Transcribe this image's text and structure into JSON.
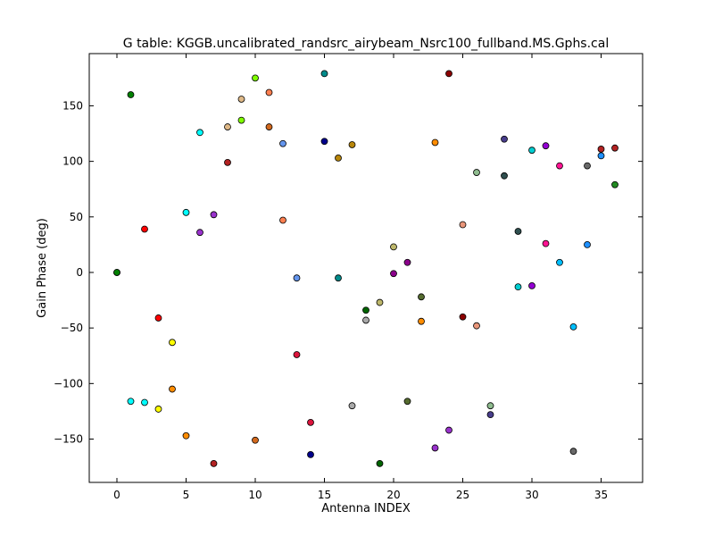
{
  "chart_data": {
    "type": "scatter",
    "title": "G table: KGGB.uncalibrated_randsrc_airybeam_Nsrc100_fullband.MS.Gphs.cal",
    "xlabel": "Antenna INDEX",
    "ylabel": "Gain Phase (deg)",
    "xlim": [
      -2,
      38
    ],
    "ylim": [
      -189,
      197
    ],
    "xticks": [
      0,
      5,
      10,
      15,
      20,
      25,
      30,
      35
    ],
    "yticks": [
      -150,
      -100,
      -50,
      0,
      50,
      100,
      150
    ],
    "grid": false,
    "points": [
      {
        "x": 0,
        "y": 0,
        "color": "#008000"
      },
      {
        "x": 0,
        "y": 0,
        "color": "#008000"
      },
      {
        "x": 1,
        "y": 160,
        "color": "#008000"
      },
      {
        "x": 1,
        "y": -116,
        "color": "#00ffff"
      },
      {
        "x": 2,
        "y": 39,
        "color": "#ff0000"
      },
      {
        "x": 2,
        "y": -117,
        "color": "#00ffff"
      },
      {
        "x": 3,
        "y": -41,
        "color": "#ff0000"
      },
      {
        "x": 3,
        "y": -123,
        "color": "#ffff00"
      },
      {
        "x": 4,
        "y": -63,
        "color": "#ffff00"
      },
      {
        "x": 4,
        "y": -105,
        "color": "#ff8c00"
      },
      {
        "x": 5,
        "y": 54,
        "color": "#00ffff"
      },
      {
        "x": 5,
        "y": -147,
        "color": "#ff8c00"
      },
      {
        "x": 6,
        "y": 126,
        "color": "#00ffff"
      },
      {
        "x": 6,
        "y": 36,
        "color": "#9932cc"
      },
      {
        "x": 7,
        "y": 52,
        "color": "#9932cc"
      },
      {
        "x": 7,
        "y": -172,
        "color": "#b22222"
      },
      {
        "x": 8,
        "y": 131,
        "color": "#deb887"
      },
      {
        "x": 8,
        "y": 99,
        "color": "#b22222"
      },
      {
        "x": 9,
        "y": 156,
        "color": "#deb887"
      },
      {
        "x": 9,
        "y": 137,
        "color": "#7fff00"
      },
      {
        "x": 10,
        "y": 175,
        "color": "#7fff00"
      },
      {
        "x": 10,
        "y": -151,
        "color": "#d2691e"
      },
      {
        "x": 11,
        "y": 162,
        "color": "#ff7f50"
      },
      {
        "x": 11,
        "y": 131,
        "color": "#d2691e"
      },
      {
        "x": 12,
        "y": 116,
        "color": "#6495ed"
      },
      {
        "x": 12,
        "y": 47,
        "color": "#ff7f50"
      },
      {
        "x": 13,
        "y": -5,
        "color": "#6495ed"
      },
      {
        "x": 13,
        "y": -74,
        "color": "#dc143c"
      },
      {
        "x": 14,
        "y": -135,
        "color": "#dc143c"
      },
      {
        "x": 14,
        "y": -164,
        "color": "#00008b"
      },
      {
        "x": 15,
        "y": 179,
        "color": "#008b8b"
      },
      {
        "x": 15,
        "y": 118,
        "color": "#00008b"
      },
      {
        "x": 16,
        "y": 103,
        "color": "#b8860b"
      },
      {
        "x": 16,
        "y": -5,
        "color": "#008b8b"
      },
      {
        "x": 17,
        "y": 115,
        "color": "#b8860b"
      },
      {
        "x": 17,
        "y": -120,
        "color": "#a9a9a9"
      },
      {
        "x": 18,
        "y": -34,
        "color": "#006400"
      },
      {
        "x": 18,
        "y": -43,
        "color": "#a9a9a9"
      },
      {
        "x": 19,
        "y": -27,
        "color": "#bdb76b"
      },
      {
        "x": 19,
        "y": -172,
        "color": "#006400"
      },
      {
        "x": 20,
        "y": 23,
        "color": "#bdb76b"
      },
      {
        "x": 20,
        "y": -1,
        "color": "#8b008b"
      },
      {
        "x": 21,
        "y": 9,
        "color": "#8b008b"
      },
      {
        "x": 21,
        "y": -116,
        "color": "#556b2f"
      },
      {
        "x": 22,
        "y": -22,
        "color": "#556b2f"
      },
      {
        "x": 22,
        "y": -44,
        "color": "#ff8c00"
      },
      {
        "x": 23,
        "y": 117,
        "color": "#ff8c00"
      },
      {
        "x": 23,
        "y": -158,
        "color": "#9932cc"
      },
      {
        "x": 24,
        "y": 179,
        "color": "#8b0000"
      },
      {
        "x": 24,
        "y": -142,
        "color": "#9932cc"
      },
      {
        "x": 25,
        "y": 43,
        "color": "#e9967a"
      },
      {
        "x": 25,
        "y": -40,
        "color": "#8b0000"
      },
      {
        "x": 26,
        "y": 90,
        "color": "#8fbc8f"
      },
      {
        "x": 26,
        "y": -48,
        "color": "#e9967a"
      },
      {
        "x": 27,
        "y": -120,
        "color": "#8fbc8f"
      },
      {
        "x": 27,
        "y": -128,
        "color": "#483d8b"
      },
      {
        "x": 28,
        "y": 120,
        "color": "#483d8b"
      },
      {
        "x": 28,
        "y": 87,
        "color": "#2f4f4f"
      },
      {
        "x": 29,
        "y": 37,
        "color": "#2f4f4f"
      },
      {
        "x": 29,
        "y": -13,
        "color": "#00ced1"
      },
      {
        "x": 30,
        "y": 110,
        "color": "#00ced1"
      },
      {
        "x": 30,
        "y": -12,
        "color": "#9400d3"
      },
      {
        "x": 31,
        "y": 114,
        "color": "#9400d3"
      },
      {
        "x": 31,
        "y": 26,
        "color": "#ff1493"
      },
      {
        "x": 32,
        "y": 96,
        "color": "#ff1493"
      },
      {
        "x": 32,
        "y": 9,
        "color": "#00bfff"
      },
      {
        "x": 33,
        "y": -49,
        "color": "#00bfff"
      },
      {
        "x": 33,
        "y": -161,
        "color": "#696969"
      },
      {
        "x": 34,
        "y": 96,
        "color": "#696969"
      },
      {
        "x": 34,
        "y": 25,
        "color": "#1e90ff"
      },
      {
        "x": 35,
        "y": 111,
        "color": "#b22222"
      },
      {
        "x": 35,
        "y": 105,
        "color": "#1e90ff"
      },
      {
        "x": 36,
        "y": 112,
        "color": "#b22222"
      },
      {
        "x": 36,
        "y": 79,
        "color": "#228b22"
      }
    ]
  }
}
